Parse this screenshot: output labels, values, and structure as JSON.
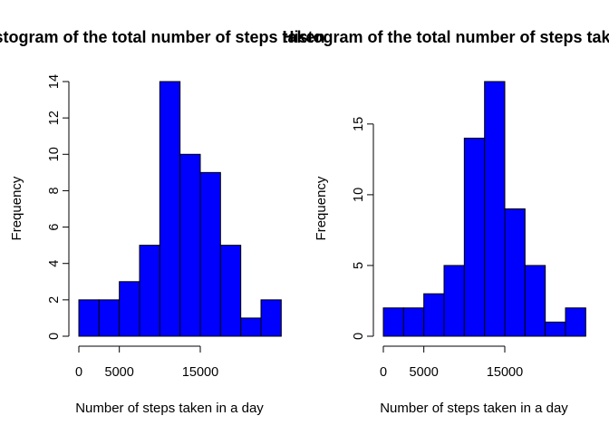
{
  "chart_data": [
    {
      "type": "bar",
      "title": "Histogram of the total number of steps taken",
      "xlabel": "Number of steps taken in a day",
      "ylabel": "Frequency",
      "bins": [
        0,
        2500,
        5000,
        7500,
        10000,
        12500,
        15000,
        17500,
        20000,
        22500
      ],
      "values": [
        2,
        2,
        3,
        5,
        14,
        10,
        9,
        5,
        1,
        2
      ],
      "xticks": [
        0,
        5000,
        15000
      ],
      "xtick_labels": [
        "0",
        "5000",
        "15000"
      ],
      "yticks": [
        0,
        2,
        4,
        6,
        8,
        10,
        12,
        14
      ],
      "ytick_labels": [
        "0",
        "2",
        "4",
        "6",
        "8",
        "10",
        "12",
        "14"
      ],
      "xlim": [
        0,
        22500
      ],
      "ylim": [
        0,
        14
      ],
      "color": "#0000ff",
      "grid": false
    },
    {
      "type": "bar",
      "title": "Histogram of the total number of steps taken",
      "xlabel": "Number of steps taken in a day",
      "ylabel": "Frequency",
      "bins": [
        0,
        2500,
        5000,
        7500,
        10000,
        12500,
        15000,
        17500,
        20000,
        22500
      ],
      "values": [
        2,
        2,
        3,
        5,
        14,
        18,
        9,
        5,
        1,
        2
      ],
      "xticks": [
        0,
        5000,
        15000
      ],
      "xtick_labels": [
        "0",
        "5000",
        "15000"
      ],
      "yticks": [
        0,
        5,
        10,
        15
      ],
      "ytick_labels": [
        "0",
        "5",
        "10",
        "15"
      ],
      "xlim": [
        0,
        22500
      ],
      "ylim": [
        0,
        18
      ],
      "color": "#0000ff",
      "grid": false
    }
  ]
}
